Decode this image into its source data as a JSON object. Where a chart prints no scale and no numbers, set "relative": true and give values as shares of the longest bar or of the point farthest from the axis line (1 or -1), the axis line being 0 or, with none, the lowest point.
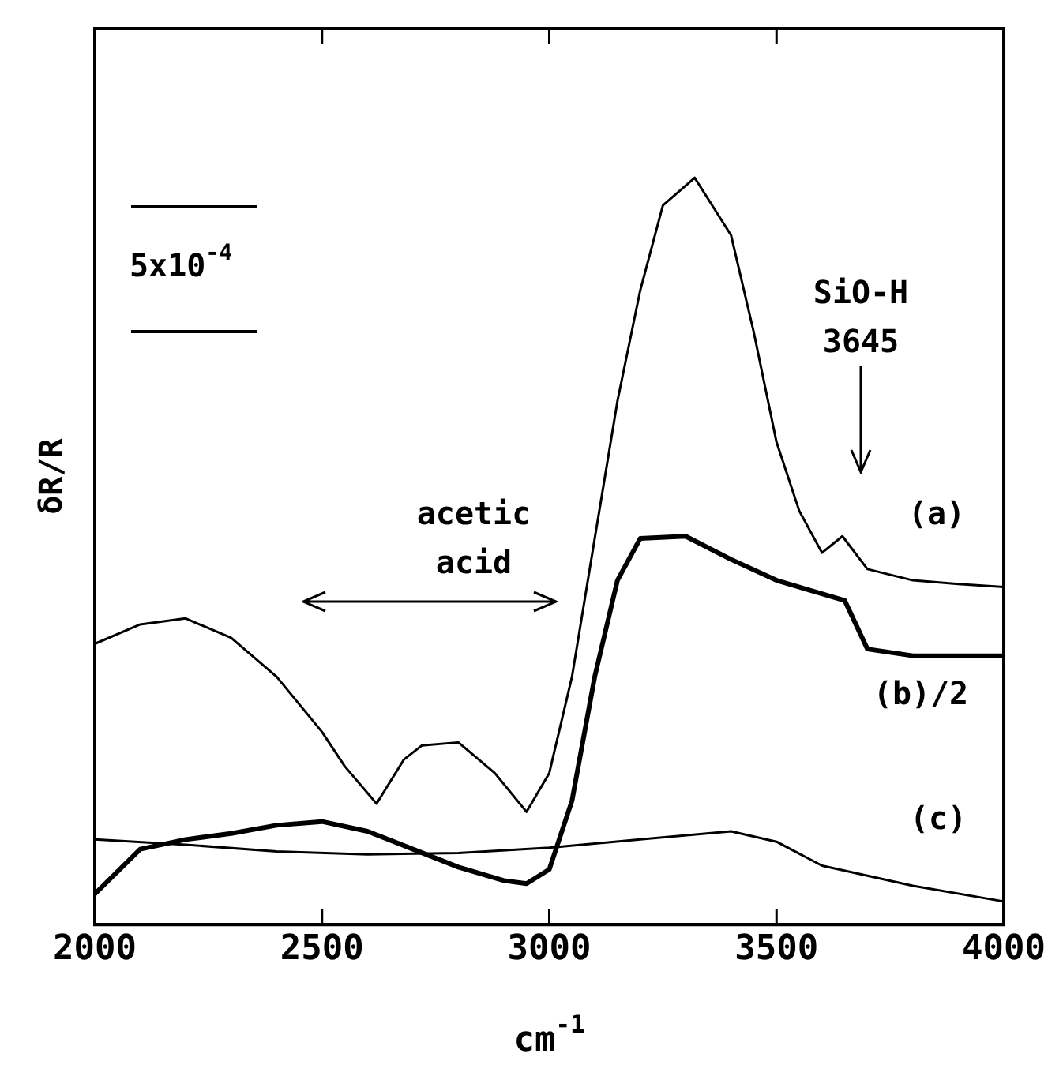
{
  "chart_data": {
    "type": "line",
    "relative": true,
    "xlabel": "cm$^{-1}$",
    "ylabel": "δR/R",
    "xlim": [
      2000,
      4000
    ],
    "xticks": [
      2000,
      2500,
      3000,
      3500,
      4000
    ],
    "grid": false,
    "legend": false,
    "marker": "none",
    "line_style": "solid",
    "series": [
      {
        "color": "#000000",
        "x": [
          2000,
          2100,
          2200,
          2300,
          2400,
          2500,
          2550,
          2620,
          2680,
          2720,
          2800,
          2880,
          2950,
          3000,
          3050,
          3100,
          3150,
          3200,
          3250,
          3320,
          3400,
          3450,
          3500,
          3550,
          3600,
          3645,
          3700,
          3800,
          3900,
          4000
        ],
        "values": [
          0.376,
          0.402,
          0.41,
          0.384,
          0.332,
          0.258,
          0.212,
          0.162,
          0.221,
          0.24,
          0.244,
          0.203,
          0.151,
          0.203,
          0.332,
          0.517,
          0.701,
          0.849,
          0.963,
          1,
          0.923,
          0.793,
          0.646,
          0.554,
          0.498,
          0.52,
          0.476,
          0.461,
          0.456,
          0.452
        ]
      },
      {
        "color": "#000000",
        "x": [
          2000,
          2100,
          2200,
          2300,
          2400,
          2500,
          2600,
          2700,
          2800,
          2900,
          2950,
          3000,
          3050,
          3100,
          3150,
          3200,
          3300,
          3400,
          3500,
          3600,
          3650,
          3700,
          3800,
          4000
        ],
        "values": [
          0.041,
          0.101,
          0.114,
          0.122,
          0.133,
          0.138,
          0.125,
          0.101,
          0.077,
          0.059,
          0.055,
          0.074,
          0.166,
          0.332,
          0.461,
          0.517,
          0.52,
          0.489,
          0.461,
          0.443,
          0.434,
          0.369,
          0.36,
          0.36
        ]
      },
      {
        "color": "#000000",
        "x": [
          2000,
          2200,
          2400,
          2600,
          2800,
          3000,
          3200,
          3400,
          3500,
          3600,
          3800,
          4000
        ],
        "values": [
          0.114,
          0.107,
          0.098,
          0.094,
          0.096,
          0.103,
          0.114,
          0.125,
          0.111,
          0.079,
          0.052,
          0.031
        ]
      }
    ],
    "annotations": [
      "(a)",
      "(b)/2",
      "(c)",
      "SiO-H",
      "3645",
      "acetic",
      "acid",
      "5x10$^{-4}$"
    ]
  }
}
